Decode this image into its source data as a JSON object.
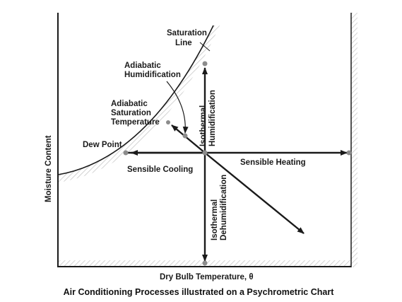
{
  "caption": "Air Conditioning Processes illustrated on a Psychrometric Chart",
  "axes": {
    "y_label": "Moisture Content",
    "x_label": "Dry Bulb Temperature, θ"
  },
  "labels": {
    "saturation_line": [
      "Saturation",
      "Line"
    ],
    "adiabatic_humidification": [
      "Adiabatic",
      "Humidification"
    ],
    "adiabatic_saturation_temperature": [
      "Adiabatic",
      "Saturation",
      "Temperature"
    ],
    "dew_point": "Dew Point",
    "sensible_heating": "Sensible Heating",
    "sensible_cooling": "Sensible Cooling",
    "isothermal_humidification": [
      "Isothermal",
      "Humidification"
    ],
    "isothermal_dehumidification": [
      "Isothermal",
      "Dehumidification"
    ]
  },
  "colors": {
    "ink": "#1a1a1a",
    "hatch": "#c8c8c8",
    "point": "#8c8c8c"
  }
}
